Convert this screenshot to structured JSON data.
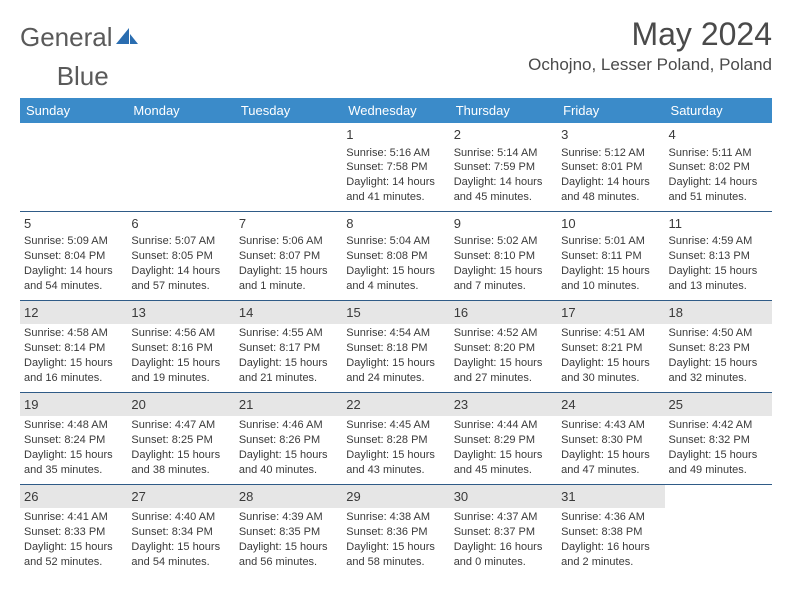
{
  "logo": {
    "text1": "General",
    "text2": "Blue"
  },
  "title": "May 2024",
  "location": "Ochojno, Lesser Poland, Poland",
  "colors": {
    "header_bg": "#3b8bc9",
    "header_text": "#ffffff",
    "border": "#2f5b87",
    "shade": "#e6e6e6",
    "text": "#3a3a3a",
    "logo_accent": "#2a6db0"
  },
  "weekdays": [
    "Sunday",
    "Monday",
    "Tuesday",
    "Wednesday",
    "Thursday",
    "Friday",
    "Saturday"
  ],
  "weeks": [
    [
      {
        "n": "",
        "sr": "",
        "ss": "",
        "dl": ""
      },
      {
        "n": "",
        "sr": "",
        "ss": "",
        "dl": ""
      },
      {
        "n": "",
        "sr": "",
        "ss": "",
        "dl": ""
      },
      {
        "n": "1",
        "sr": "Sunrise: 5:16 AM",
        "ss": "Sunset: 7:58 PM",
        "dl": "Daylight: 14 hours and 41 minutes."
      },
      {
        "n": "2",
        "sr": "Sunrise: 5:14 AM",
        "ss": "Sunset: 7:59 PM",
        "dl": "Daylight: 14 hours and 45 minutes."
      },
      {
        "n": "3",
        "sr": "Sunrise: 5:12 AM",
        "ss": "Sunset: 8:01 PM",
        "dl": "Daylight: 14 hours and 48 minutes."
      },
      {
        "n": "4",
        "sr": "Sunrise: 5:11 AM",
        "ss": "Sunset: 8:02 PM",
        "dl": "Daylight: 14 hours and 51 minutes."
      }
    ],
    [
      {
        "n": "5",
        "sr": "Sunrise: 5:09 AM",
        "ss": "Sunset: 8:04 PM",
        "dl": "Daylight: 14 hours and 54 minutes."
      },
      {
        "n": "6",
        "sr": "Sunrise: 5:07 AM",
        "ss": "Sunset: 8:05 PM",
        "dl": "Daylight: 14 hours and 57 minutes."
      },
      {
        "n": "7",
        "sr": "Sunrise: 5:06 AM",
        "ss": "Sunset: 8:07 PM",
        "dl": "Daylight: 15 hours and 1 minute."
      },
      {
        "n": "8",
        "sr": "Sunrise: 5:04 AM",
        "ss": "Sunset: 8:08 PM",
        "dl": "Daylight: 15 hours and 4 minutes."
      },
      {
        "n": "9",
        "sr": "Sunrise: 5:02 AM",
        "ss": "Sunset: 8:10 PM",
        "dl": "Daylight: 15 hours and 7 minutes."
      },
      {
        "n": "10",
        "sr": "Sunrise: 5:01 AM",
        "ss": "Sunset: 8:11 PM",
        "dl": "Daylight: 15 hours and 10 minutes."
      },
      {
        "n": "11",
        "sr": "Sunrise: 4:59 AM",
        "ss": "Sunset: 8:13 PM",
        "dl": "Daylight: 15 hours and 13 minutes."
      }
    ],
    [
      {
        "n": "12",
        "sr": "Sunrise: 4:58 AM",
        "ss": "Sunset: 8:14 PM",
        "dl": "Daylight: 15 hours and 16 minutes."
      },
      {
        "n": "13",
        "sr": "Sunrise: 4:56 AM",
        "ss": "Sunset: 8:16 PM",
        "dl": "Daylight: 15 hours and 19 minutes."
      },
      {
        "n": "14",
        "sr": "Sunrise: 4:55 AM",
        "ss": "Sunset: 8:17 PM",
        "dl": "Daylight: 15 hours and 21 minutes."
      },
      {
        "n": "15",
        "sr": "Sunrise: 4:54 AM",
        "ss": "Sunset: 8:18 PM",
        "dl": "Daylight: 15 hours and 24 minutes."
      },
      {
        "n": "16",
        "sr": "Sunrise: 4:52 AM",
        "ss": "Sunset: 8:20 PM",
        "dl": "Daylight: 15 hours and 27 minutes."
      },
      {
        "n": "17",
        "sr": "Sunrise: 4:51 AM",
        "ss": "Sunset: 8:21 PM",
        "dl": "Daylight: 15 hours and 30 minutes."
      },
      {
        "n": "18",
        "sr": "Sunrise: 4:50 AM",
        "ss": "Sunset: 8:23 PM",
        "dl": "Daylight: 15 hours and 32 minutes."
      }
    ],
    [
      {
        "n": "19",
        "sr": "Sunrise: 4:48 AM",
        "ss": "Sunset: 8:24 PM",
        "dl": "Daylight: 15 hours and 35 minutes."
      },
      {
        "n": "20",
        "sr": "Sunrise: 4:47 AM",
        "ss": "Sunset: 8:25 PM",
        "dl": "Daylight: 15 hours and 38 minutes."
      },
      {
        "n": "21",
        "sr": "Sunrise: 4:46 AM",
        "ss": "Sunset: 8:26 PM",
        "dl": "Daylight: 15 hours and 40 minutes."
      },
      {
        "n": "22",
        "sr": "Sunrise: 4:45 AM",
        "ss": "Sunset: 8:28 PM",
        "dl": "Daylight: 15 hours and 43 minutes."
      },
      {
        "n": "23",
        "sr": "Sunrise: 4:44 AM",
        "ss": "Sunset: 8:29 PM",
        "dl": "Daylight: 15 hours and 45 minutes."
      },
      {
        "n": "24",
        "sr": "Sunrise: 4:43 AM",
        "ss": "Sunset: 8:30 PM",
        "dl": "Daylight: 15 hours and 47 minutes."
      },
      {
        "n": "25",
        "sr": "Sunrise: 4:42 AM",
        "ss": "Sunset: 8:32 PM",
        "dl": "Daylight: 15 hours and 49 minutes."
      }
    ],
    [
      {
        "n": "26",
        "sr": "Sunrise: 4:41 AM",
        "ss": "Sunset: 8:33 PM",
        "dl": "Daylight: 15 hours and 52 minutes."
      },
      {
        "n": "27",
        "sr": "Sunrise: 4:40 AM",
        "ss": "Sunset: 8:34 PM",
        "dl": "Daylight: 15 hours and 54 minutes."
      },
      {
        "n": "28",
        "sr": "Sunrise: 4:39 AM",
        "ss": "Sunset: 8:35 PM",
        "dl": "Daylight: 15 hours and 56 minutes."
      },
      {
        "n": "29",
        "sr": "Sunrise: 4:38 AM",
        "ss": "Sunset: 8:36 PM",
        "dl": "Daylight: 15 hours and 58 minutes."
      },
      {
        "n": "30",
        "sr": "Sunrise: 4:37 AM",
        "ss": "Sunset: 8:37 PM",
        "dl": "Daylight: 16 hours and 0 minutes."
      },
      {
        "n": "31",
        "sr": "Sunrise: 4:36 AM",
        "ss": "Sunset: 8:38 PM",
        "dl": "Daylight: 16 hours and 2 minutes."
      },
      {
        "n": "",
        "sr": "",
        "ss": "",
        "dl": ""
      }
    ]
  ]
}
